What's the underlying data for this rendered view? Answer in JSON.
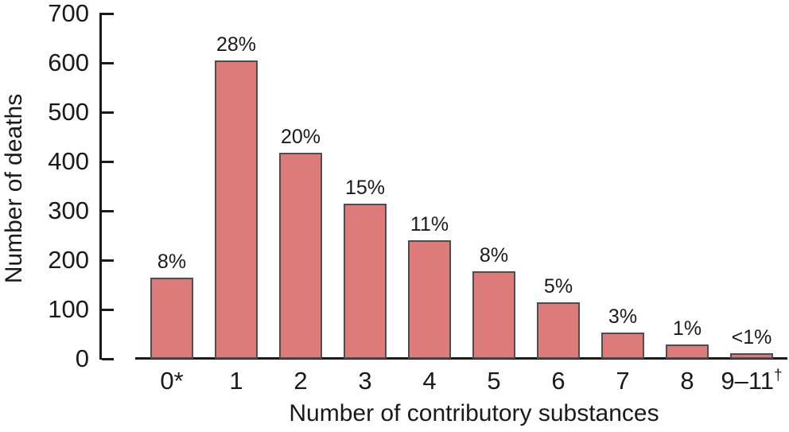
{
  "chart_data": {
    "type": "bar",
    "title": "",
    "xlabel": "Number of contributory substances",
    "ylabel": "Number of deaths",
    "categories": [
      "0*",
      "1",
      "2",
      "3",
      "4",
      "5",
      "6",
      "7",
      "8",
      "9–11†"
    ],
    "values": [
      165,
      605,
      418,
      315,
      240,
      178,
      114,
      53,
      29,
      12
    ],
    "bar_labels": [
      "8%",
      "28%",
      "20%",
      "15%",
      "11%",
      "8%",
      "5%",
      "3%",
      "1%",
      "<1%"
    ],
    "ylim": [
      0,
      700
    ],
    "yticks": [
      0,
      100,
      200,
      300,
      400,
      500,
      600,
      700
    ],
    "grid": false,
    "legend_position": "none",
    "colors": {
      "bar_fill": "#dd7a7a",
      "bar_border": "#4d4d4d",
      "axis": "#1a1a1a",
      "text": "#1a1a1a",
      "background": "#ffffff"
    }
  }
}
